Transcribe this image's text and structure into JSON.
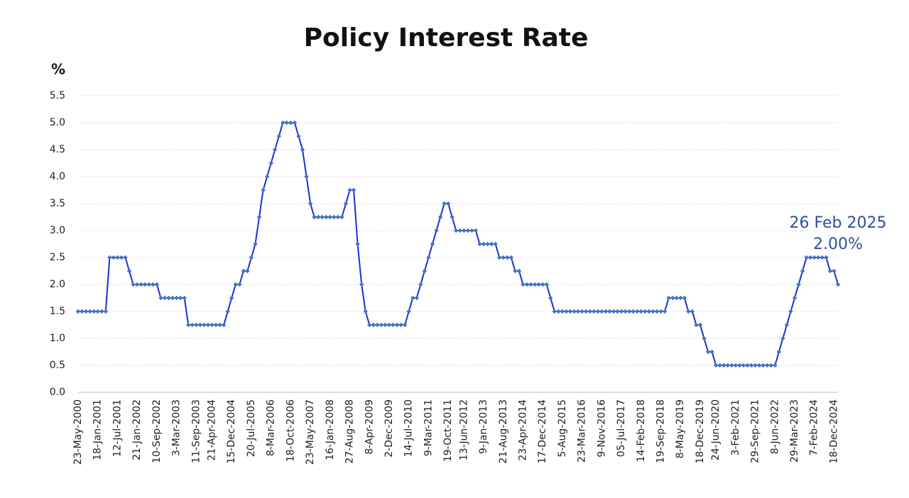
{
  "chart_data": {
    "type": "line",
    "title": "Policy Interest Rate",
    "y_label": "%",
    "annotations": [
      "26 Feb 2025",
      "2.00%"
    ],
    "color": "#1a2fd6",
    "marker_color": "#4472c4",
    "grid": true,
    "ylim": [
      0,
      5.5
    ],
    "yticks": [
      {
        "value": 0,
        "label": "0.0"
      },
      {
        "value": 0.5,
        "label": "0.5"
      },
      {
        "value": 1,
        "label": "1.0"
      },
      {
        "value": 1.5,
        "label": "1.5"
      },
      {
        "value": 2,
        "label": "2.0"
      },
      {
        "value": 2.5,
        "label": "2.5"
      },
      {
        "value": 3,
        "label": "3.0"
      },
      {
        "value": 3.5,
        "label": "3.5"
      },
      {
        "value": 4,
        "label": "4.0"
      },
      {
        "value": 4.5,
        "label": "4.5"
      },
      {
        "value": 5,
        "label": "5.0"
      },
      {
        "value": 5.5,
        "label": "5.5"
      }
    ],
    "categories": [
      "23-May-2000",
      null,
      null,
      null,
      null,
      "18-Jan-2001",
      null,
      null,
      null,
      null,
      "12-Jul-2001",
      null,
      null,
      null,
      null,
      "21-Jan-2002",
      null,
      null,
      null,
      null,
      "10-Sep-2002",
      null,
      null,
      null,
      null,
      "3-Mar-2003",
      null,
      null,
      null,
      null,
      "11-Sep-2003",
      null,
      null,
      null,
      "21-Apr-2004",
      null,
      null,
      null,
      null,
      "15-Dec-2004",
      null,
      null,
      null,
      null,
      "20-Jul-2005",
      null,
      null,
      null,
      null,
      "8-Mar-2006",
      null,
      null,
      null,
      null,
      "18-Oct-2006",
      null,
      null,
      null,
      null,
      "23-May-2007",
      null,
      null,
      null,
      null,
      "16-Jan-2008",
      null,
      null,
      null,
      null,
      "27-Aug-2008",
      null,
      null,
      null,
      null,
      "8-Apr-2009",
      null,
      null,
      null,
      null,
      "2-Dec-2009",
      null,
      null,
      null,
      null,
      "14-Jul-2010",
      null,
      null,
      null,
      null,
      "9-Mar-2011",
      null,
      null,
      null,
      null,
      "19-Oct-2011",
      null,
      null,
      null,
      "13-Jun-2012",
      null,
      null,
      null,
      null,
      "9-Jan-2013",
      null,
      null,
      null,
      null,
      "21-Aug-2013",
      null,
      null,
      null,
      null,
      "23-Apr-2014",
      null,
      null,
      null,
      null,
      "17-Dec-2014",
      null,
      null,
      null,
      null,
      "5-Aug-2015",
      null,
      null,
      null,
      null,
      "23-Mar-2016",
      null,
      null,
      null,
      null,
      "9-Nov-2016",
      null,
      null,
      null,
      null,
      "05-Jul-2017",
      null,
      null,
      null,
      null,
      "14-Feb-2018",
      null,
      null,
      null,
      null,
      "19-Sep-2018",
      null,
      null,
      null,
      null,
      "8-May-2019",
      null,
      null,
      null,
      null,
      "18-Dec-2019",
      null,
      null,
      null,
      "24-Jun-2020",
      null,
      null,
      null,
      null,
      "3-Feb-2021",
      null,
      null,
      null,
      null,
      "29-Sep-2021",
      null,
      null,
      null,
      null,
      "8-Jun-2022",
      null,
      null,
      null,
      null,
      "29-Mar-2023",
      null,
      null,
      null,
      null,
      "7-Feb-2024",
      null,
      null,
      null,
      null,
      "18-Dec-2024",
      null
    ],
    "values": [
      1.5,
      1.5,
      1.5,
      1.5,
      1.5,
      1.5,
      1.5,
      1.5,
      2.5,
      2.5,
      2.5,
      2.5,
      2.5,
      2.25,
      2,
      2,
      2,
      2,
      2,
      2,
      2,
      1.75,
      1.75,
      1.75,
      1.75,
      1.75,
      1.75,
      1.75,
      1.25,
      1.25,
      1.25,
      1.25,
      1.25,
      1.25,
      1.25,
      1.25,
      1.25,
      1.25,
      1.5,
      1.75,
      2,
      2,
      2.25,
      2.25,
      2.5,
      2.75,
      3.25,
      3.75,
      4,
      4.25,
      4.5,
      4.75,
      5,
      5,
      5,
      5,
      4.75,
      4.5,
      4,
      3.5,
      3.25,
      3.25,
      3.25,
      3.25,
      3.25,
      3.25,
      3.25,
      3.25,
      3.5,
      3.75,
      3.75,
      2.75,
      2,
      1.5,
      1.25,
      1.25,
      1.25,
      1.25,
      1.25,
      1.25,
      1.25,
      1.25,
      1.25,
      1.25,
      1.5,
      1.75,
      1.75,
      2,
      2.25,
      2.5,
      2.75,
      3,
      3.25,
      3.5,
      3.5,
      3.25,
      3,
      3,
      3,
      3,
      3,
      3,
      2.75,
      2.75,
      2.75,
      2.75,
      2.75,
      2.5,
      2.5,
      2.5,
      2.5,
      2.25,
      2.25,
      2,
      2,
      2,
      2,
      2,
      2,
      2,
      1.75,
      1.5,
      1.5,
      1.5,
      1.5,
      1.5,
      1.5,
      1.5,
      1.5,
      1.5,
      1.5,
      1.5,
      1.5,
      1.5,
      1.5,
      1.5,
      1.5,
      1.5,
      1.5,
      1.5,
      1.5,
      1.5,
      1.5,
      1.5,
      1.5,
      1.5,
      1.5,
      1.5,
      1.5,
      1.5,
      1.75,
      1.75,
      1.75,
      1.75,
      1.75,
      1.5,
      1.5,
      1.25,
      1.25,
      1,
      0.75,
      0.75,
      0.5,
      0.5,
      0.5,
      0.5,
      0.5,
      0.5,
      0.5,
      0.5,
      0.5,
      0.5,
      0.5,
      0.5,
      0.5,
      0.5,
      0.5,
      0.5,
      0.75,
      1,
      1.25,
      1.5,
      1.75,
      2,
      2.25,
      2.5,
      2.5,
      2.5,
      2.5,
      2.5,
      2.5,
      2.25,
      2.25,
      2
    ]
  }
}
